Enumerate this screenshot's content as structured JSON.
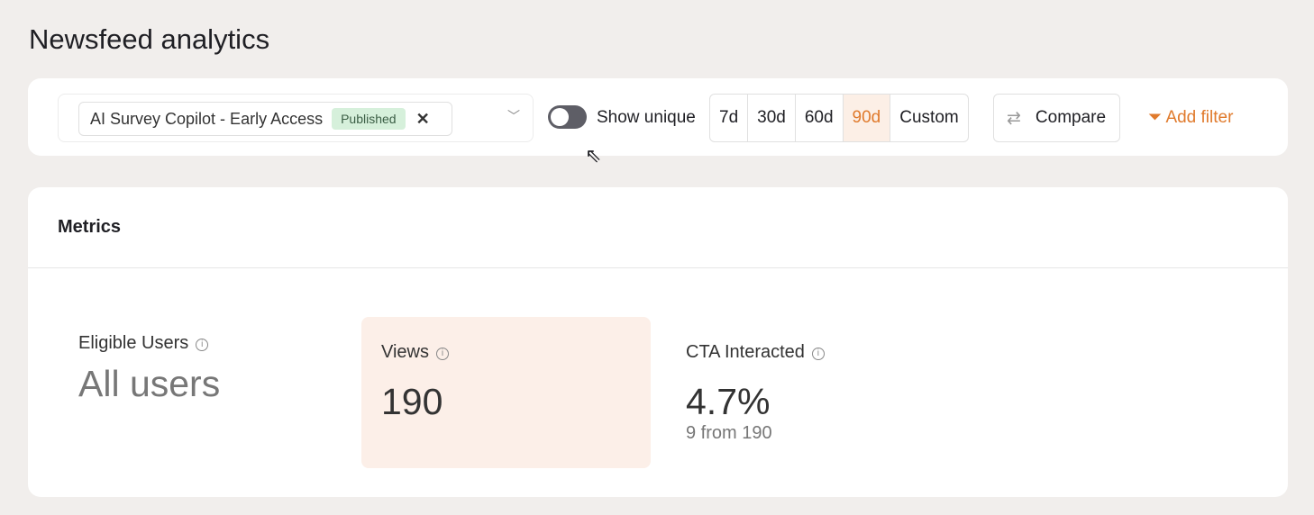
{
  "page": {
    "title": "Newsfeed analytics"
  },
  "filters": {
    "selected": "AI Survey Copilot - Early Access",
    "badge": "Published",
    "toggle_label": "Show unique",
    "toggle_on": false,
    "ranges": [
      "7d",
      "30d",
      "60d",
      "90d",
      "Custom"
    ],
    "active_range": "90d",
    "compare": "Compare",
    "add_filter": "Add filter"
  },
  "metrics": {
    "title": "Metrics",
    "eligible": {
      "label": "Eligible Users",
      "value": "All users"
    },
    "views": {
      "label": "Views",
      "value": "190"
    },
    "cta": {
      "label": "CTA Interacted",
      "value": "4.7%",
      "sub": "9 from 190"
    }
  },
  "colors": {
    "accent": "#e07a2c",
    "badge_bg": "#d6f0db",
    "highlight_bg": "#fcefe8"
  }
}
